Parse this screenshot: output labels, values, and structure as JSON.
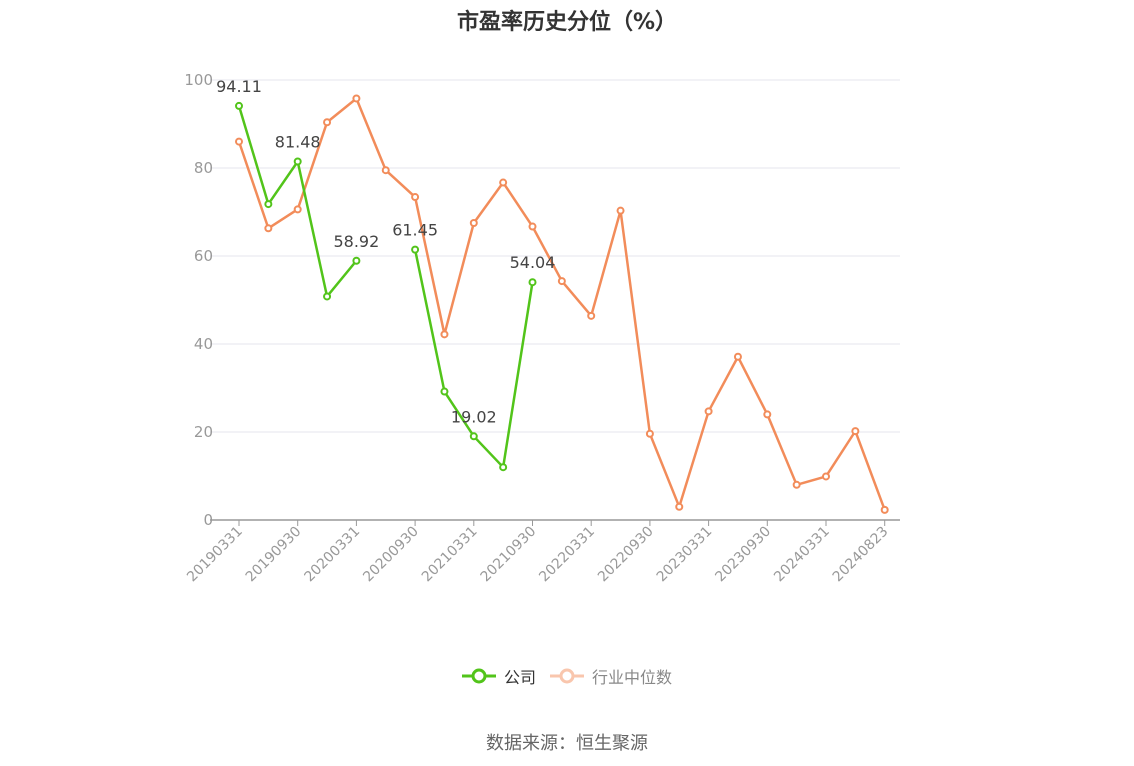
{
  "title": "市盈率历史分位（%）",
  "source": "数据来源：恒生聚源",
  "colors": {
    "company": "#52c41a",
    "industry": "#f28c5a",
    "grid": "#e6e6ee",
    "axis": "#999999",
    "tick_label": "#999999"
  },
  "legend": [
    {
      "name": "公司"
    },
    {
      "name": "行业中位数"
    }
  ],
  "chart_data": {
    "type": "line",
    "title": "市盈率历史分位（%）",
    "xlabel": "",
    "ylabel": "",
    "ylim": [
      0,
      100
    ],
    "yticks": [
      0,
      20,
      40,
      60,
      80,
      100
    ],
    "grid": true,
    "legend_position": "bottom",
    "x": [
      "20190331",
      "20190630",
      "20190930",
      "20191231",
      "20200331",
      "20200630",
      "20200930",
      "20201231",
      "20210331",
      "20210630",
      "20210930",
      "20211231",
      "20220331",
      "20220630",
      "20220930",
      "20221231",
      "20230331",
      "20230630",
      "20230930",
      "20231231",
      "20240331",
      "20240630",
      "20240823"
    ],
    "x_tick_labels": [
      "20190331",
      "20190930",
      "20200331",
      "20200930",
      "20210331",
      "20210930",
      "20220331",
      "20220930",
      "20230331",
      "20230930",
      "20240331",
      "20240823"
    ],
    "series": [
      {
        "name": "公司",
        "values": [
          94.11,
          71.8,
          81.48,
          50.8,
          58.92,
          null,
          61.45,
          29.2,
          19.02,
          12.0,
          54.04,
          null,
          null,
          null,
          null,
          null,
          null,
          null,
          null,
          null,
          null,
          null,
          null
        ],
        "labels": [
          "94.11",
          null,
          "81.48",
          null,
          "58.92",
          null,
          "61.45",
          null,
          "19.02",
          null,
          "54.04",
          null,
          null,
          null,
          null,
          null,
          null,
          null,
          null,
          null,
          null,
          null,
          null
        ]
      },
      {
        "name": "行业中位数",
        "values": [
          86.0,
          66.3,
          70.6,
          90.4,
          95.8,
          79.5,
          73.4,
          42.2,
          67.5,
          76.7,
          66.7,
          54.3,
          46.4,
          70.3,
          19.6,
          3.0,
          24.7,
          37.1,
          24.0,
          8.0,
          9.9,
          20.2,
          2.3
        ]
      }
    ]
  }
}
